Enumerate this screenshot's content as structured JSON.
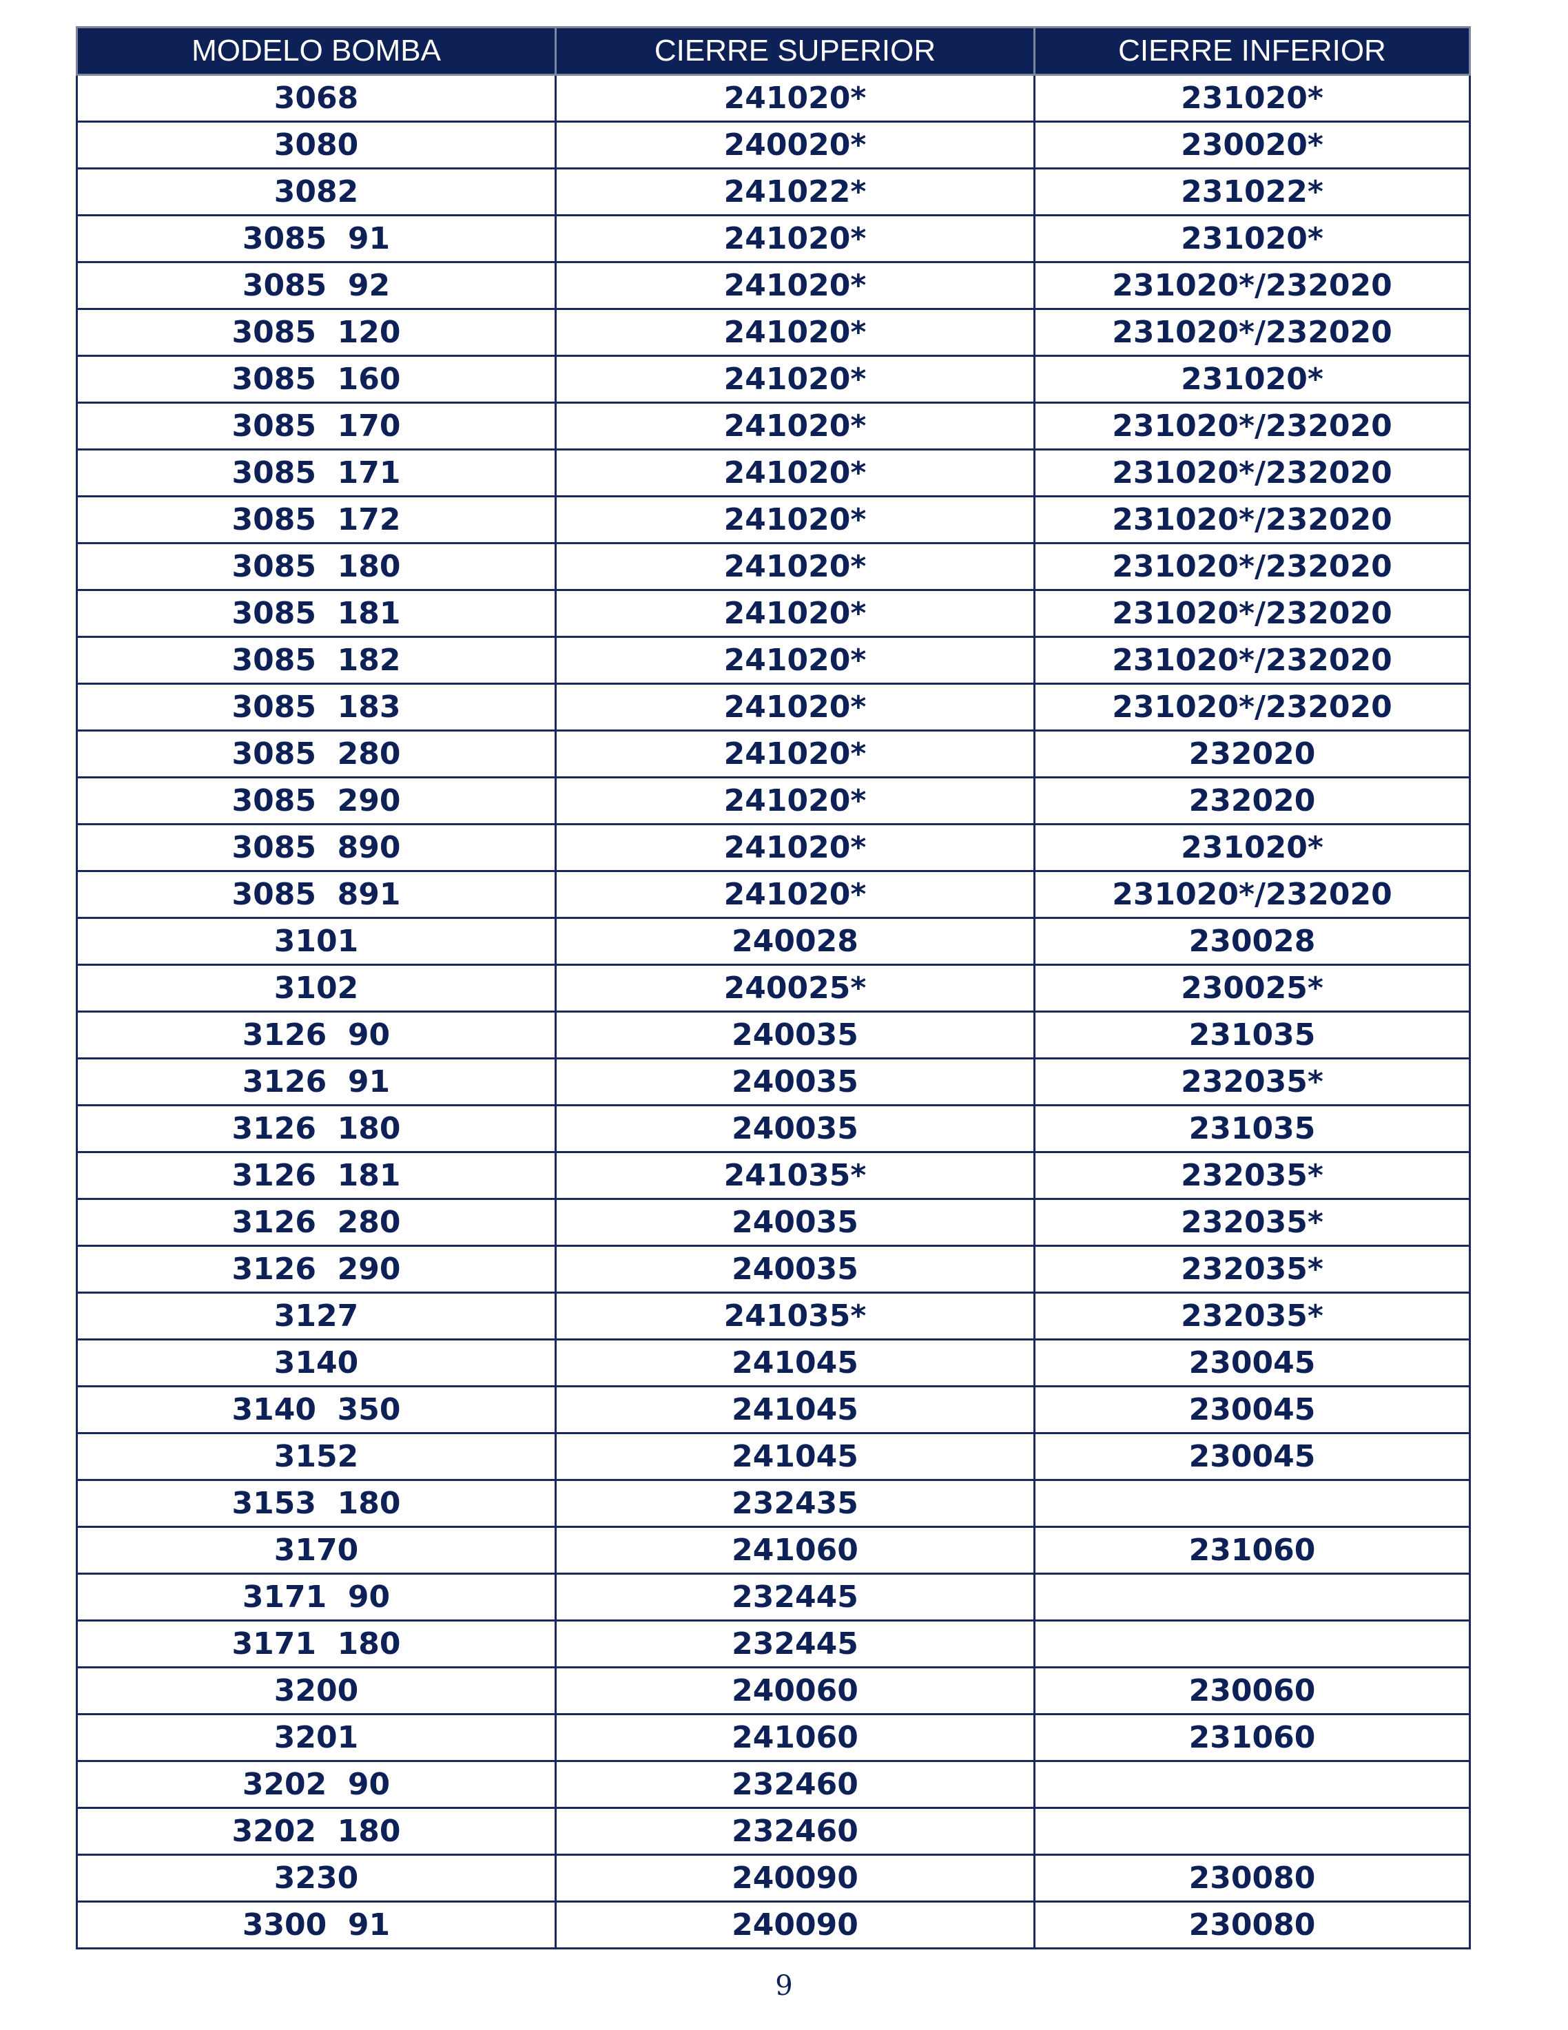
{
  "table": {
    "headers": [
      "MODELO BOMBA",
      "CIERRE SUPERIOR",
      "CIERRE INFERIOR"
    ],
    "rows": [
      [
        "3068",
        "241020*",
        "231020*"
      ],
      [
        "3080",
        "240020*",
        "230020*"
      ],
      [
        "3082",
        "241022*",
        "231022*"
      ],
      [
        "3085  91",
        "241020*",
        "231020*"
      ],
      [
        "3085  92",
        "241020*",
        "231020*/232020"
      ],
      [
        "3085  120",
        "241020*",
        "231020*/232020"
      ],
      [
        "3085  160",
        "241020*",
        "231020*"
      ],
      [
        "3085  170",
        "241020*",
        "231020*/232020"
      ],
      [
        "3085  171",
        "241020*",
        "231020*/232020"
      ],
      [
        "3085  172",
        "241020*",
        "231020*/232020"
      ],
      [
        "3085  180",
        "241020*",
        "231020*/232020"
      ],
      [
        "3085  181",
        "241020*",
        "231020*/232020"
      ],
      [
        "3085  182",
        "241020*",
        "231020*/232020"
      ],
      [
        "3085  183",
        "241020*",
        "231020*/232020"
      ],
      [
        "3085  280",
        "241020*",
        "232020"
      ],
      [
        "3085  290",
        "241020*",
        "232020"
      ],
      [
        "3085  890",
        "241020*",
        "231020*"
      ],
      [
        "3085  891",
        "241020*",
        "231020*/232020"
      ],
      [
        "3101",
        "240028",
        "230028"
      ],
      [
        "3102",
        "240025*",
        "230025*"
      ],
      [
        "3126  90",
        "240035",
        "231035"
      ],
      [
        "3126  91",
        "240035",
        "232035*"
      ],
      [
        "3126  180",
        "240035",
        "231035"
      ],
      [
        "3126  181",
        "241035*",
        "232035*"
      ],
      [
        "3126  280",
        "240035",
        "232035*"
      ],
      [
        "3126  290",
        "240035",
        "232035*"
      ],
      [
        "3127",
        "241035*",
        "232035*"
      ],
      [
        "3140",
        "241045",
        "230045"
      ],
      [
        "3140  350",
        "241045",
        "230045"
      ],
      [
        "3152",
        "241045",
        "230045"
      ],
      [
        "3153  180",
        "232435",
        ""
      ],
      [
        "3170",
        "241060",
        "231060"
      ],
      [
        "3171  90",
        "232445",
        ""
      ],
      [
        "3171  180",
        "232445",
        ""
      ],
      [
        "3200",
        "240060",
        "230060"
      ],
      [
        "3201",
        "241060",
        "231060"
      ],
      [
        "3202  90",
        "232460",
        ""
      ],
      [
        "3202  180",
        "232460",
        ""
      ],
      [
        "3230",
        "240090",
        "230080"
      ],
      [
        "3300  91",
        "240090",
        "230080"
      ]
    ]
  },
  "footer": {
    "page_number": "9"
  },
  "colors": {
    "header_background": "#0d2157",
    "text": "#0d2157"
  }
}
